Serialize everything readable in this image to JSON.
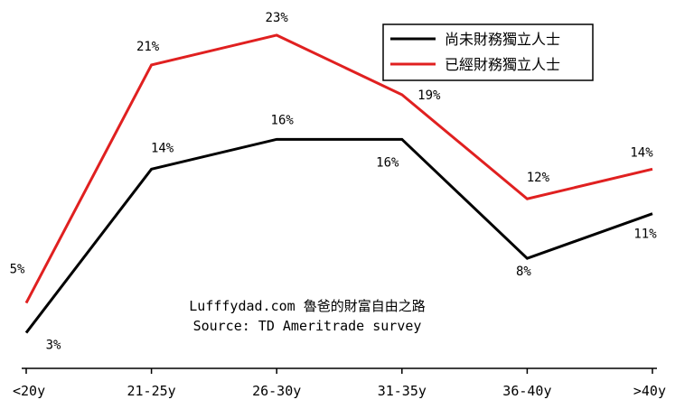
{
  "chart_data": {
    "type": "line",
    "categories": [
      "<20y",
      "21-25y",
      "26-30y",
      "31-35y",
      "36-40y",
      ">40y"
    ],
    "series": [
      {
        "name": "尚未財務獨立人士",
        "color": "#000000",
        "values": [
          3,
          14,
          16,
          16,
          8,
          11
        ],
        "labels": [
          "3%",
          "14%",
          "16%",
          "16%",
          "8%",
          "11%"
        ]
      },
      {
        "name": "已經財務獨立人士",
        "color": "#e02020",
        "values": [
          5,
          21,
          23,
          19,
          12,
          14
        ],
        "labels": [
          "5%",
          "21%",
          "23%",
          "19%",
          "12%",
          "14%"
        ]
      }
    ],
    "ylim": [
      0,
      25
    ],
    "grid": false,
    "legend_position": "top-right",
    "annotations": [
      "Lufffydad.com 魯爸的財富自由之路",
      "Source: TD Ameritrade survey"
    ]
  }
}
